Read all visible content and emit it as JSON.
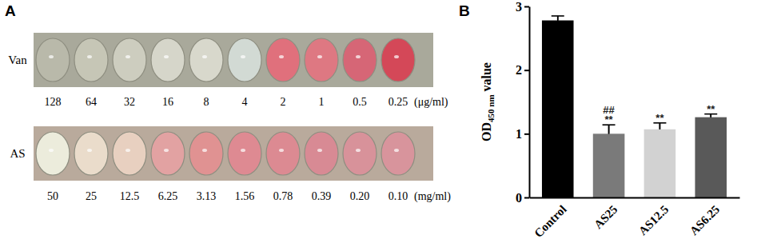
{
  "panel_a": {
    "label": "A",
    "rows": [
      {
        "label": "Van",
        "concentrations": [
          "128",
          "64",
          "32",
          "16",
          "8",
          "4",
          "2",
          "1",
          "0.5",
          "0.25"
        ],
        "unit": "(μg/ml)",
        "colors": [
          "#b9b9aa",
          "#c6c6b6",
          "#cdcdbf",
          "#d6d6ca",
          "#d8d8cc",
          "#d2dad4",
          "#e0707c",
          "#de7882",
          "#d66676",
          "#d44858"
        ]
      },
      {
        "label": "AS",
        "concentrations": [
          "50",
          "25",
          "12.5",
          "6.25",
          "3.13",
          "1.56",
          "0.78",
          "0.39",
          "0.20",
          "0.10"
        ],
        "unit": "(mg/ml)",
        "colors": [
          "#ececdc",
          "#eadccb",
          "#e8d0c0",
          "#e2a2a2",
          "#e09292",
          "#de8a92",
          "#dc8a92",
          "#d88a94",
          "#d8929a",
          "#d8949c"
        ]
      }
    ]
  },
  "chart_data": {
    "type": "bar",
    "label": "B",
    "y_label": {
      "text": "OD",
      "subscript": "450 nm",
      "suffix": " value"
    },
    "categories": [
      "Control",
      "AS25",
      "AS12.5",
      "AS6.25"
    ],
    "values": [
      2.78,
      1.0,
      1.07,
      1.26
    ],
    "errors": [
      0.07,
      0.14,
      0.1,
      0.05
    ],
    "colors": [
      "#000000",
      "#7a7a7a",
      "#d2d2d2",
      "#595959"
    ],
    "ylim": [
      0,
      3
    ],
    "yticks": [
      0,
      1,
      2,
      3
    ],
    "grid": false,
    "annotations": [
      {
        "category": "AS25",
        "text": "##"
      },
      {
        "category": "AS25",
        "text": "**"
      },
      {
        "category": "AS12.5",
        "text": "**"
      },
      {
        "category": "AS6.25",
        "text": "**"
      }
    ]
  }
}
